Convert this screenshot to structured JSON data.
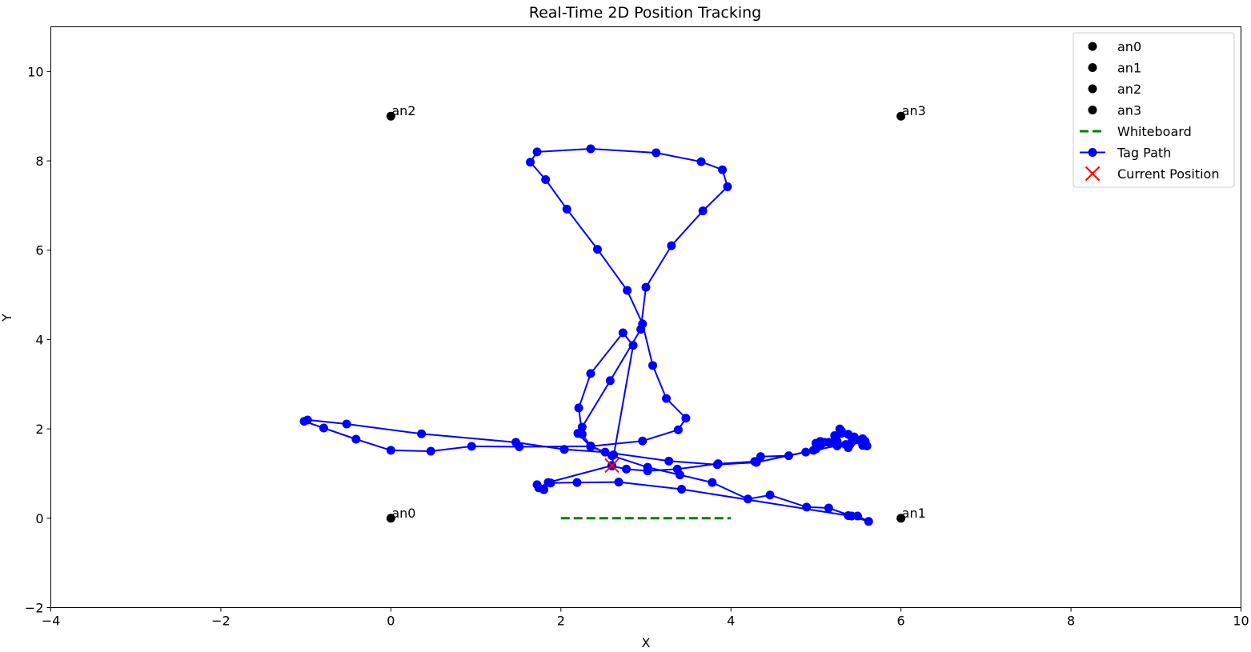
{
  "chart_data": {
    "type": "scatter",
    "title": "Real-Time 2D Position Tracking",
    "xlabel": "X",
    "ylabel": "Y",
    "xlim": [
      -4,
      10
    ],
    "ylim": [
      -2,
      11
    ],
    "xticks": [
      -4,
      -2,
      0,
      2,
      4,
      6,
      8,
      10
    ],
    "yticks": [
      -2,
      0,
      2,
      4,
      6,
      8,
      10
    ],
    "grid": false,
    "legend_position": "top-right",
    "anchors": [
      {
        "name": "an0",
        "x": 0,
        "y": 0,
        "color": "#000000"
      },
      {
        "name": "an1",
        "x": 6,
        "y": 0,
        "color": "#000000"
      },
      {
        "name": "an2",
        "x": 0,
        "y": 9,
        "color": "#000000"
      },
      {
        "name": "an3",
        "x": 6,
        "y": 9,
        "color": "#000000"
      }
    ],
    "whiteboard": {
      "name": "Whiteboard",
      "x": [
        2,
        4
      ],
      "y": [
        0,
        0
      ],
      "color": "#008000",
      "style": "dashed"
    },
    "tag_path": {
      "name": "Tag Path",
      "color": "#0000ff",
      "points": [
        [
          5.6,
          1.62
        ],
        [
          5.55,
          1.63
        ],
        [
          5.5,
          1.75
        ],
        [
          5.45,
          1.82
        ],
        [
          5.38,
          1.88
        ],
        [
          5.3,
          1.9
        ],
        [
          5.25,
          1.72
        ],
        [
          5.35,
          1.65
        ],
        [
          5.42,
          1.7
        ],
        [
          5.28,
          2.0
        ],
        [
          5.2,
          1.7
        ],
        [
          5.1,
          1.7
        ],
        [
          5.05,
          1.72
        ],
        [
          5.0,
          1.68
        ],
        [
          5.0,
          1.55
        ],
        [
          4.88,
          1.48
        ],
        [
          4.68,
          1.4
        ],
        [
          4.35,
          1.38
        ],
        [
          4.28,
          1.27
        ],
        [
          3.85,
          1.22
        ],
        [
          3.37,
          1.1
        ],
        [
          3.02,
          1.06
        ],
        [
          2.77,
          1.1
        ],
        [
          2.6,
          1.17
        ],
        [
          2.62,
          1.42
        ],
        [
          2.35,
          1.6
        ],
        [
          2.2,
          1.9
        ],
        [
          2.25,
          2.04
        ],
        [
          2.58,
          3.08
        ],
        [
          2.94,
          4.23
        ],
        [
          3.0,
          5.17
        ],
        [
          3.3,
          6.1
        ],
        [
          3.67,
          6.88
        ],
        [
          3.96,
          7.42
        ],
        [
          3.9,
          7.8
        ],
        [
          3.65,
          7.98
        ],
        [
          3.12,
          8.18
        ],
        [
          2.35,
          8.27
        ],
        [
          1.72,
          8.2
        ],
        [
          1.64,
          7.97
        ],
        [
          1.82,
          7.58
        ],
        [
          2.07,
          6.92
        ],
        [
          2.43,
          6.02
        ],
        [
          2.78,
          5.1
        ],
        [
          2.96,
          4.35
        ],
        [
          3.08,
          3.42
        ],
        [
          3.24,
          2.68
        ],
        [
          3.47,
          2.24
        ],
        [
          3.38,
          1.98
        ],
        [
          2.96,
          1.73
        ],
        [
          2.35,
          1.61
        ],
        [
          1.51,
          1.6
        ],
        [
          0.95,
          1.61
        ],
        [
          0.47,
          1.5
        ],
        [
          0.0,
          1.52
        ],
        [
          -0.41,
          1.77
        ],
        [
          -0.79,
          2.02
        ],
        [
          -1.02,
          2.17
        ],
        [
          -0.98,
          2.2
        ],
        [
          -0.52,
          2.11
        ],
        [
          0.36,
          1.89
        ],
        [
          1.47,
          1.7
        ],
        [
          2.04,
          1.54
        ],
        [
          2.52,
          1.48
        ],
        [
          3.27,
          1.28
        ],
        [
          3.84,
          1.2
        ],
        [
          4.3,
          1.25
        ],
        [
          4.97,
          1.52
        ],
        [
          5.25,
          1.62
        ],
        [
          5.38,
          1.58
        ],
        [
          5.4,
          1.65
        ],
        [
          5.55,
          1.78
        ],
        [
          5.58,
          1.72
        ],
        [
          5.3,
          1.95
        ],
        [
          5.22,
          1.85
        ],
        [
          5.15,
          1.7
        ],
        [
          5.05,
          1.62
        ]
      ],
      "points_2": [
        [
          2.6,
          1.18
        ],
        [
          2.85,
          3.87
        ],
        [
          2.73,
          4.15
        ],
        [
          2.35,
          3.24
        ],
        [
          2.21,
          2.47
        ],
        [
          2.25,
          1.88
        ],
        [
          2.35,
          1.62
        ],
        [
          2.6,
          1.4
        ],
        [
          3.02,
          1.14
        ],
        [
          3.4,
          0.97
        ],
        [
          3.78,
          0.8
        ],
        [
          4.2,
          0.43
        ],
        [
          4.46,
          0.52
        ],
        [
          4.89,
          0.25
        ],
        [
          5.15,
          0.23
        ],
        [
          5.42,
          0.05
        ],
        [
          5.49,
          0.05
        ],
        [
          5.62,
          -0.07
        ],
        [
          5.38,
          0.06
        ],
        [
          3.42,
          0.65
        ],
        [
          2.68,
          0.81
        ],
        [
          2.19,
          0.8
        ],
        [
          1.88,
          0.79
        ],
        [
          1.8,
          0.64
        ],
        [
          1.72,
          0.75
        ],
        [
          1.74,
          0.68
        ],
        [
          1.85,
          0.8
        ],
        [
          2.6,
          1.18
        ]
      ]
    },
    "current_position": {
      "name": "Current Position",
      "x": 2.6,
      "y": 1.18,
      "color": "#ff0000",
      "marker": "x"
    },
    "legend": [
      "an0",
      "an1",
      "an2",
      "an3",
      "Whiteboard",
      "Tag Path",
      "Current Position"
    ]
  }
}
